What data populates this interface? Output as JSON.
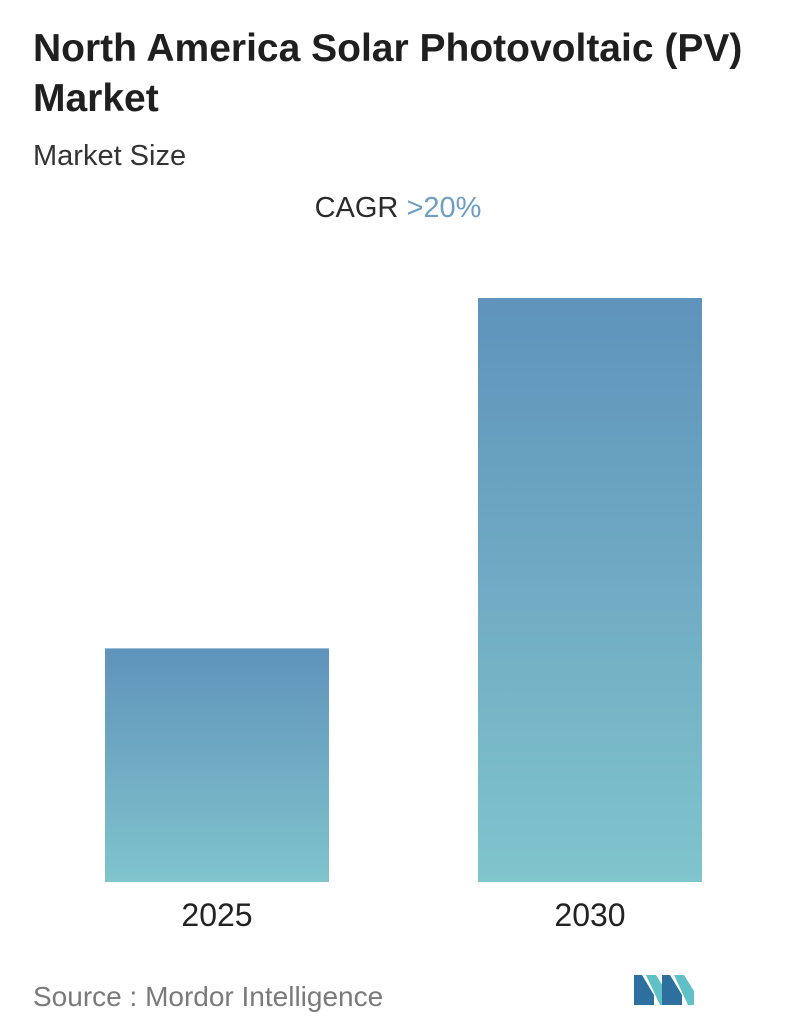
{
  "title": "North America Solar Photovoltaic (PV) Market",
  "subtitle": "Market Size",
  "cagr": {
    "label": "CAGR",
    "value": ">20%"
  },
  "source": {
    "label": "Source :",
    "name": "Mordor Intelligence"
  },
  "colors": {
    "bar_top": "#5f93bb",
    "bar_bottom": "#80c4cc",
    "cagr_value": "#6e9ec3",
    "logo_dark": "#2d6f9f",
    "logo_light": "#5fc0c8"
  },
  "chart_data": {
    "type": "bar",
    "categories": [
      "2025",
      "2030"
    ],
    "values": [
      40,
      100
    ],
    "ylim": [
      0,
      100
    ],
    "title": "North America Solar Photovoltaic (PV) Market",
    "subtitle": "Market Size",
    "xlabel": "",
    "ylabel": "",
    "grid": false,
    "legend": "none",
    "annotation": "CAGR >20%"
  }
}
